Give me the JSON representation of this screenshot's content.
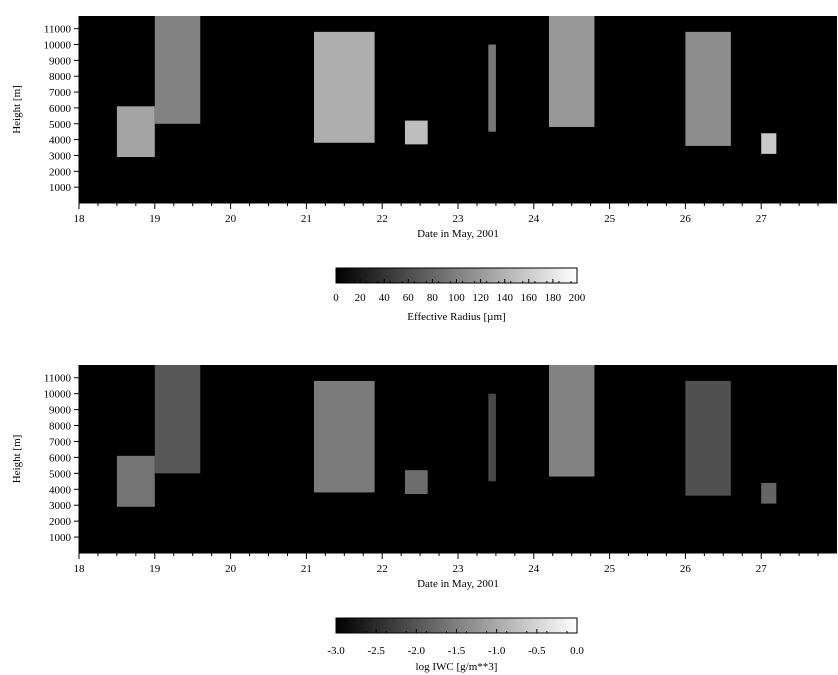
{
  "chart_data": [
    {
      "type": "heatmap",
      "panel": "effective-radius",
      "xlabel": "Date in May, 2001",
      "ylabel": "Height [m]",
      "xlim": [
        18,
        28
      ],
      "ylim": [
        0,
        11800
      ],
      "xticks": [
        "18",
        "19",
        "20",
        "21",
        "22",
        "23",
        "24",
        "25",
        "26",
        "27"
      ],
      "yticks": [
        "1000",
        "2000",
        "3000",
        "4000",
        "5000",
        "6000",
        "7000",
        "8000",
        "9000",
        "10000",
        "11000"
      ],
      "colorbar": {
        "label": "Effective Radius [µm]",
        "range": [
          0,
          200
        ],
        "ticks": [
          "0",
          "20",
          "40",
          "60",
          "80",
          "100",
          "120",
          "140",
          "160",
          "180",
          "200"
        ],
        "colormap": "grayscale black-to-white"
      },
      "background_color": "#000000",
      "features": [
        {
          "x": [
            18.5,
            19.0
          ],
          "y": [
            2900,
            6100
          ],
          "value": 150
        },
        {
          "x": [
            19.0,
            19.6
          ],
          "y": [
            5000,
            11800
          ],
          "value": 120
        },
        {
          "x": [
            21.1,
            21.9
          ],
          "y": [
            3800,
            10800
          ],
          "value": 160
        },
        {
          "x": [
            22.3,
            22.6
          ],
          "y": [
            3700,
            5200
          ],
          "value": 175
        },
        {
          "x": [
            23.4,
            23.5
          ],
          "y": [
            4500,
            10000
          ],
          "value": 110
        },
        {
          "x": [
            24.2,
            24.8
          ],
          "y": [
            4800,
            11800
          ],
          "value": 140
        },
        {
          "x": [
            26.0,
            26.6
          ],
          "y": [
            3600,
            10800
          ],
          "value": 130
        },
        {
          "x": [
            27.0,
            27.2
          ],
          "y": [
            3100,
            4400
          ],
          "value": 185
        }
      ]
    },
    {
      "type": "heatmap",
      "panel": "log-iwc",
      "xlabel": "Date in May, 2001",
      "ylabel": "Height [m]",
      "xlim": [
        18,
        28
      ],
      "ylim": [
        0,
        11800
      ],
      "xticks": [
        "18",
        "19",
        "20",
        "21",
        "22",
        "23",
        "24",
        "25",
        "26",
        "27"
      ],
      "yticks": [
        "1000",
        "2000",
        "3000",
        "4000",
        "5000",
        "6000",
        "7000",
        "8000",
        "9000",
        "10000",
        "11000"
      ],
      "colorbar": {
        "label": "log IWC [g/m**3]",
        "range": [
          -3.0,
          0.0
        ],
        "ticks": [
          "-3.0",
          "-2.5",
          "-2.0",
          "-1.5",
          "-1.0",
          "-0.5",
          "0.0"
        ],
        "colormap": "grayscale black-to-white"
      },
      "background_color": "#000000",
      "features": [
        {
          "x": [
            18.5,
            19.0
          ],
          "y": [
            2900,
            6100
          ],
          "value": -1.4
        },
        {
          "x": [
            19.0,
            19.6
          ],
          "y": [
            5000,
            11800
          ],
          "value": -1.8
        },
        {
          "x": [
            21.1,
            21.9
          ],
          "y": [
            3800,
            10800
          ],
          "value": -1.3
        },
        {
          "x": [
            22.3,
            22.6
          ],
          "y": [
            3700,
            5200
          ],
          "value": -1.5
        },
        {
          "x": [
            23.4,
            23.5
          ],
          "y": [
            4500,
            10000
          ],
          "value": -2.0
        },
        {
          "x": [
            24.2,
            24.8
          ],
          "y": [
            4800,
            11800
          ],
          "value": -1.2
        },
        {
          "x": [
            26.0,
            26.6
          ],
          "y": [
            3600,
            10800
          ],
          "value": -1.9
        },
        {
          "x": [
            27.0,
            27.2
          ],
          "y": [
            3100,
            4400
          ],
          "value": -1.6
        }
      ]
    }
  ]
}
